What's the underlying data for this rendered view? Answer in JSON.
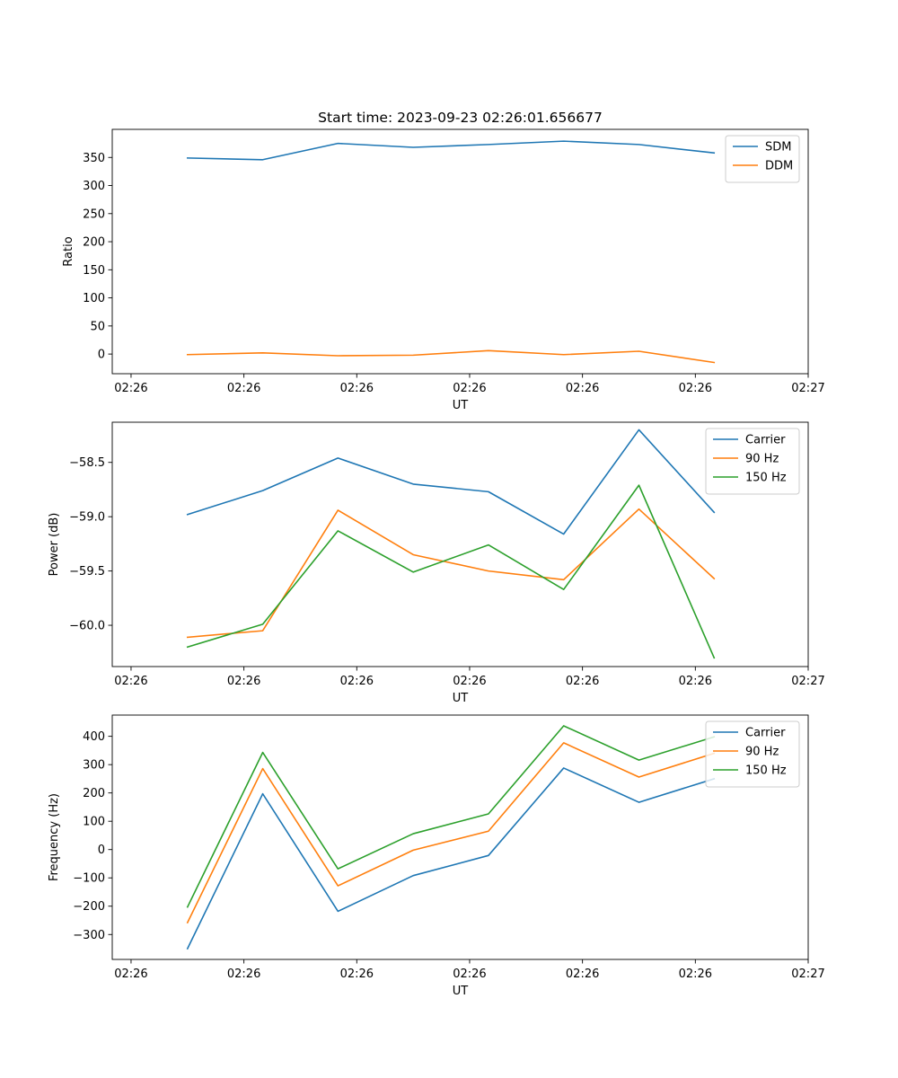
{
  "figure_title": "Start time: 2023-09-23 02:26:01.656677",
  "colors": {
    "blue": "#1f77b4",
    "orange": "#ff7f0e",
    "green": "#2ca02c"
  },
  "chart_data": [
    {
      "type": "line",
      "title": "Start time: 2023-09-23 02:26:01.656677",
      "xlabel": "UT",
      "ylabel": "Ratio",
      "xlim": [
        0,
        9.25
      ],
      "ylim": [
        -35,
        400
      ],
      "x_tick_positions": [
        0.25,
        1.75,
        3.25,
        4.75,
        6.25,
        7.75,
        9.25
      ],
      "x_tick_labels": [
        "02:26",
        "02:26",
        "02:26",
        "02:26",
        "02:26",
        "02:26",
        "02:27"
      ],
      "y_tick_values": [
        0,
        50,
        100,
        150,
        200,
        250,
        300,
        350
      ],
      "y_tick_labels": [
        "0",
        "50",
        "100",
        "150",
        "200",
        "250",
        "300",
        "350"
      ],
      "legend_position": "top-right",
      "x": [
        1,
        2,
        3,
        4,
        5,
        6,
        7,
        8
      ],
      "series": [
        {
          "name": "SDM",
          "color": "#1f77b4",
          "values": [
            349,
            346,
            375,
            368,
            373,
            379,
            373,
            358
          ]
        },
        {
          "name": "DDM",
          "color": "#ff7f0e",
          "values": [
            -1,
            2,
            -3,
            -2,
            6,
            -1,
            5,
            -15
          ]
        }
      ]
    },
    {
      "type": "line",
      "title": "",
      "xlabel": "UT",
      "ylabel": "Power (dB)",
      "xlim": [
        0,
        9.25
      ],
      "ylim": [
        -60.38,
        -58.13
      ],
      "x_tick_positions": [
        0.25,
        1.75,
        3.25,
        4.75,
        6.25,
        7.75,
        9.25
      ],
      "x_tick_labels": [
        "02:26",
        "02:26",
        "02:26",
        "02:26",
        "02:26",
        "02:26",
        "02:27"
      ],
      "y_tick_values": [
        -60.0,
        -59.5,
        -59.0,
        -58.5
      ],
      "y_tick_labels": [
        "−60.0",
        "−59.5",
        "−59.0",
        "−58.5"
      ],
      "legend_position": "top-right",
      "x": [
        1,
        2,
        3,
        4,
        5,
        6,
        7,
        8
      ],
      "series": [
        {
          "name": "Carrier",
          "color": "#1f77b4",
          "values": [
            -58.98,
            -58.76,
            -58.46,
            -58.7,
            -58.77,
            -59.16,
            -58.2,
            -58.96
          ]
        },
        {
          "name": "90 Hz",
          "color": "#ff7f0e",
          "values": [
            -60.11,
            -60.05,
            -58.94,
            -59.35,
            -59.5,
            -59.58,
            -58.93,
            -59.57
          ]
        },
        {
          "name": "150 Hz",
          "color": "#2ca02c",
          "values": [
            -60.2,
            -59.99,
            -59.13,
            -59.51,
            -59.26,
            -59.67,
            -58.71,
            -60.3
          ]
        }
      ]
    },
    {
      "type": "line",
      "title": "",
      "xlabel": "UT",
      "ylabel": "Frequency (Hz)",
      "xlim": [
        0,
        9.25
      ],
      "ylim": [
        -388,
        475
      ],
      "x_tick_positions": [
        0.25,
        1.75,
        3.25,
        4.75,
        6.25,
        7.75,
        9.25
      ],
      "x_tick_labels": [
        "02:26",
        "02:26",
        "02:26",
        "02:26",
        "02:26",
        "02:26",
        "02:27"
      ],
      "y_tick_values": [
        -300,
        -200,
        -100,
        0,
        100,
        200,
        300,
        400
      ],
      "y_tick_labels": [
        "−300",
        "−200",
        "−100",
        "0",
        "100",
        "200",
        "300",
        "400"
      ],
      "legend_position": "top-right",
      "x": [
        1,
        2,
        3,
        4,
        5,
        6,
        7,
        8
      ],
      "series": [
        {
          "name": "Carrier",
          "color": "#1f77b4",
          "values": [
            -350,
            197,
            -218,
            -92,
            -21,
            288,
            167,
            250
          ]
        },
        {
          "name": "90 Hz",
          "color": "#ff7f0e",
          "values": [
            -258,
            286,
            -128,
            -2,
            65,
            377,
            256,
            340
          ]
        },
        {
          "name": "150 Hz",
          "color": "#2ca02c",
          "values": [
            -203,
            343,
            -68,
            56,
            126,
            437,
            316,
            398
          ]
        }
      ]
    }
  ]
}
